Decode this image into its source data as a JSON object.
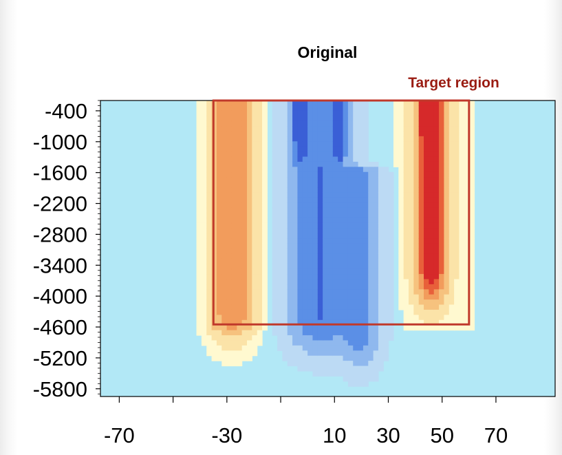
{
  "chart_data": {
    "type": "heatmap",
    "title": "Original",
    "xlabel": "",
    "ylabel": "",
    "x_ticks": [
      -70,
      -30,
      10,
      30,
      50,
      70
    ],
    "x_minor_ticks": [
      -50,
      -10
    ],
    "y_ticks": [
      -400,
      -1000,
      -1600,
      -2200,
      -2800,
      -3400,
      -4000,
      -4600,
      -5200,
      -5800
    ],
    "xlim": [
      -77,
      92
    ],
    "ylim": [
      -5950,
      -200
    ],
    "grid": false,
    "colors": {
      "background_field": "#b2e8f6",
      "ocean_floor_land": "#ffffff",
      "frame": "#000000",
      "highlight_box": "#c0392b",
      "annotation": "#9a1c12"
    },
    "colorscale": [
      "#3a5fd6",
      "#5b8fe6",
      "#8fb8ee",
      "#bcdaf4",
      "#fff9d0",
      "#fbe3a8",
      "#f6c27e",
      "#f29c5c",
      "#e8603a",
      "#d6292a"
    ],
    "features": [
      {
        "kind": "positive",
        "x_center": -28,
        "x_halfwidth": 9,
        "y_top": -250,
        "y_bottom": -4300,
        "peak": 0.55
      },
      {
        "kind": "negative",
        "x_center": 4,
        "x_halfwidth": 11,
        "y_top": -250,
        "y_bottom": -4400,
        "peak": -0.75
      },
      {
        "kind": "negative",
        "x_center": 20,
        "x_halfwidth": 7,
        "y_top": -1600,
        "y_bottom": -4700,
        "peak": -0.55
      },
      {
        "kind": "positive",
        "x_center": 46,
        "x_halfwidth": 6,
        "y_top": -250,
        "y_bottom": -3500,
        "peak": 0.85
      },
      {
        "kind": "negative",
        "x_center": -3,
        "x_halfwidth": 2,
        "y_top": -250,
        "y_bottom": -500,
        "peak": -1.0
      },
      {
        "kind": "negative",
        "x_center": 12,
        "x_halfwidth": 2,
        "y_top": -250,
        "y_bottom": -600,
        "peak": -0.95
      },
      {
        "kind": "positive",
        "x_center": 45,
        "x_halfwidth": 2,
        "y_top": -250,
        "y_bottom": -600,
        "peak": 1.0
      }
    ],
    "annotations": [
      {
        "text": "Target region",
        "kind": "highlight-box",
        "x_range": [
          -35,
          60
        ],
        "y_range": [
          -200,
          -4550
        ]
      }
    ]
  }
}
